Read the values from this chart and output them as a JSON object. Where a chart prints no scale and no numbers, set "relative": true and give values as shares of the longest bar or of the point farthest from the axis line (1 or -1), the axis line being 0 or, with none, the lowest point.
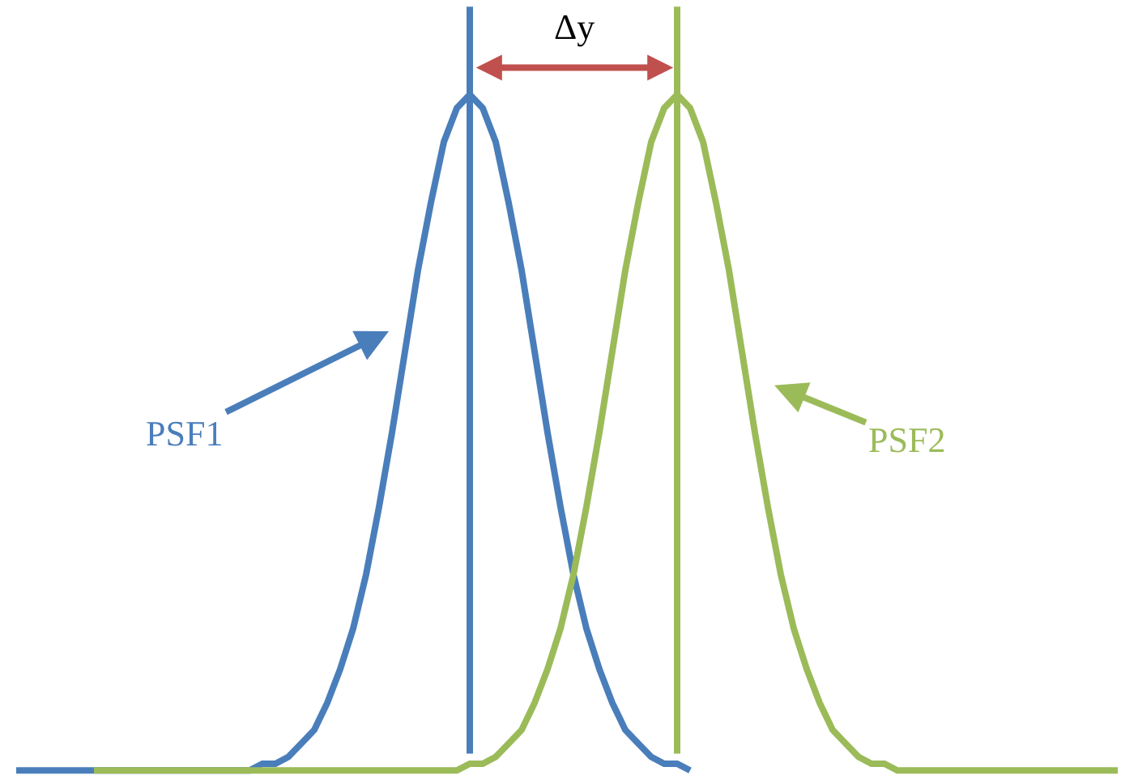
{
  "chart_data": {
    "type": "line",
    "relative": true,
    "legend": false,
    "marker": "none",
    "line_style": "solid",
    "categories": [
      null,
      null,
      null,
      null,
      null,
      null,
      null,
      null,
      null,
      null,
      null,
      null,
      null,
      null,
      null,
      null,
      null,
      null,
      null,
      null,
      null,
      null,
      null,
      null,
      null,
      null,
      null,
      null,
      null,
      null,
      null,
      null,
      null,
      null,
      null,
      null,
      null,
      null,
      null,
      null,
      null,
      null,
      null,
      null,
      null,
      null,
      null,
      null,
      null,
      null,
      null,
      null,
      null,
      null,
      null,
      null,
      null,
      null,
      null,
      null,
      null,
      null,
      null,
      null,
      null,
      null,
      null,
      null,
      null,
      null,
      null,
      null,
      null,
      null,
      null,
      null,
      null,
      null,
      null,
      null,
      null,
      null,
      null,
      null,
      null,
      null
    ],
    "series": [
      {
        "name": "PSF1",
        "color": "#4a7ebb",
        "values": [
          0,
          0,
          0,
          0,
          0,
          0,
          0,
          0,
          0,
          0,
          0,
          0,
          0,
          0,
          0,
          0,
          0,
          0,
          0,
          0.01,
          0.01,
          0.02,
          0.04,
          0.06,
          0.1,
          0.15,
          0.21,
          0.29,
          0.39,
          0.5,
          0.62,
          0.74,
          0.84,
          0.93,
          0.98,
          1,
          0.98,
          0.93,
          0.84,
          0.74,
          0.62,
          0.5,
          0.39,
          0.29,
          0.21,
          0.15,
          0.1,
          0.06,
          0.04,
          0.02,
          0.01,
          0.01,
          0,
          null,
          null,
          null,
          null,
          null,
          null,
          null,
          null,
          null,
          null,
          null,
          null,
          null,
          null,
          null,
          null,
          null,
          null,
          null,
          null,
          null,
          null,
          null,
          null,
          null,
          null,
          null,
          null,
          null,
          null,
          null,
          null,
          null
        ]
      },
      {
        "name": "PSF2",
        "color": "#9bbb59",
        "values": [
          null,
          null,
          null,
          null,
          null,
          null,
          0,
          0,
          0,
          0,
          0,
          0,
          0,
          0,
          0,
          0,
          0,
          0,
          0,
          0,
          0,
          0,
          0,
          0,
          0,
          0,
          0,
          0,
          0,
          0,
          0,
          0,
          0,
          0,
          0,
          0.01,
          0.01,
          0.02,
          0.04,
          0.06,
          0.1,
          0.15,
          0.21,
          0.29,
          0.39,
          0.5,
          0.62,
          0.74,
          0.84,
          0.93,
          0.98,
          1,
          0.98,
          0.93,
          0.84,
          0.74,
          0.62,
          0.5,
          0.39,
          0.29,
          0.21,
          0.15,
          0.1,
          0.06,
          0.04,
          0.02,
          0.01,
          0.01,
          0,
          0,
          0,
          0,
          0,
          0,
          0,
          0,
          0,
          0,
          0,
          0,
          0,
          0,
          0,
          0,
          0,
          0
        ]
      }
    ],
    "annotations": [
      "Δy"
    ]
  }
}
